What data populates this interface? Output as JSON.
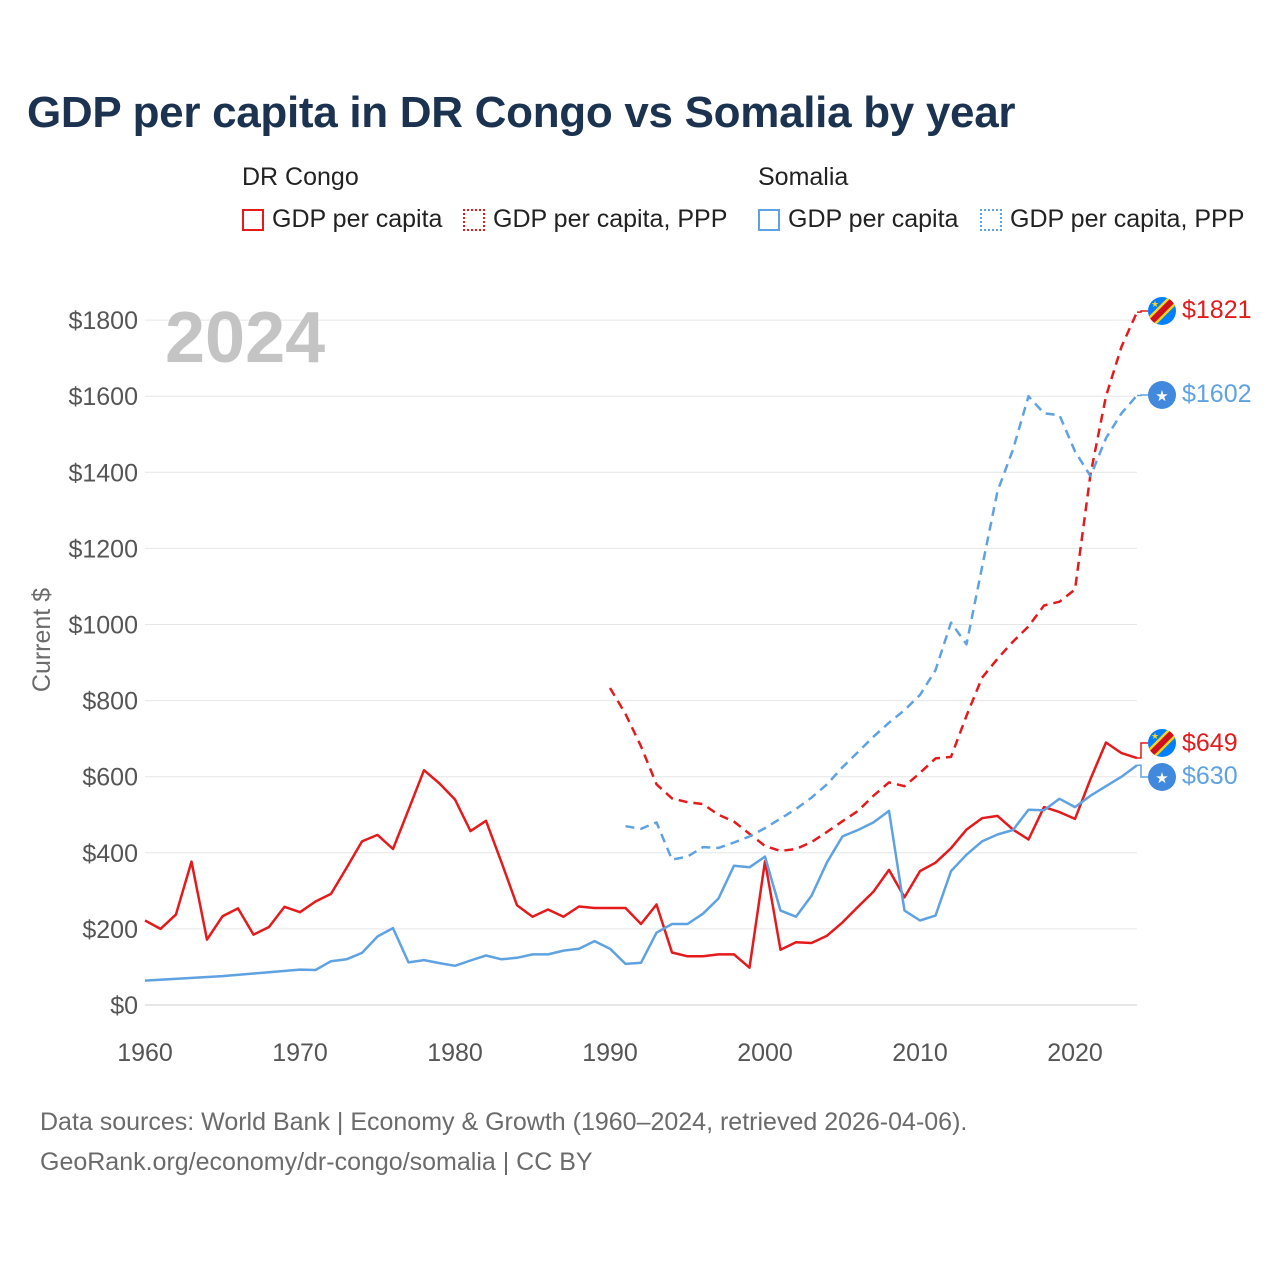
{
  "page": {
    "title": "GDP per capita in DR Congo vs Somalia by year",
    "year_watermark": "2024",
    "footer_line1": "Data sources: World Bank | Economy & Growth (1960–2024, retrieved 2026-04-06).",
    "footer_line2": "GeoRank.org/economy/dr-congo/somalia | CC BY"
  },
  "legend": {
    "groups": [
      {
        "name": "DR Congo",
        "items": [
          {
            "label": "GDP per capita",
            "style": "solid",
            "color": "#e41a1c"
          },
          {
            "label": "GDP per capita, PPP",
            "style": "dotted",
            "color": "#e41a1c"
          }
        ]
      },
      {
        "name": "Somalia",
        "items": [
          {
            "label": "GDP per capita",
            "style": "solid",
            "color": "#5fa2e2"
          },
          {
            "label": "GDP per capita, PPP",
            "style": "dotted",
            "color": "#5fa2e2"
          }
        ]
      }
    ]
  },
  "chart_data": {
    "type": "line",
    "title": "GDP per capita in DR Congo vs Somalia by year",
    "xlabel": "",
    "ylabel": "Current $",
    "xlim": [
      1960,
      2024
    ],
    "ylim": [
      0,
      1900
    ],
    "x_ticks": [
      1960,
      1970,
      1980,
      1990,
      2000,
      2010,
      2020
    ],
    "y_ticks": [
      0,
      200,
      400,
      600,
      800,
      1000,
      1200,
      1400,
      1600,
      1800
    ],
    "y_tick_labels": [
      "$0",
      "$200",
      "$400",
      "$600",
      "$800",
      "$1000",
      "$1200",
      "$1400",
      "$1600",
      "$1800"
    ],
    "grid": true,
    "series": [
      {
        "name": "DR Congo GDP per capita",
        "color": "#e41a1c",
        "dash": "solid",
        "end_label": "$649",
        "x": [
          1960,
          1961,
          1962,
          1963,
          1964,
          1965,
          1966,
          1967,
          1968,
          1969,
          1970,
          1971,
          1972,
          1973,
          1974,
          1975,
          1976,
          1977,
          1978,
          1979,
          1980,
          1981,
          1982,
          1983,
          1984,
          1985,
          1986,
          1987,
          1988,
          1989,
          1990,
          1991,
          1992,
          1993,
          1994,
          1995,
          1996,
          1997,
          1998,
          1999,
          2000,
          2001,
          2002,
          2003,
          2004,
          2005,
          2006,
          2007,
          2008,
          2009,
          2010,
          2011,
          2012,
          2013,
          2014,
          2015,
          2016,
          2017,
          2018,
          2019,
          2020,
          2021,
          2022,
          2023,
          2024
        ],
        "y": [
          222,
          200,
          238,
          377,
          172,
          233,
          254,
          185,
          205,
          258,
          244,
          272,
          292,
          360,
          430,
          447,
          410,
          513,
          617,
          582,
          540,
          457,
          484,
          375,
          262,
          232,
          251,
          232,
          259,
          255,
          255,
          255,
          213,
          264,
          138,
          128,
          128,
          133,
          133,
          98,
          378,
          145,
          165,
          163,
          182,
          217,
          258,
          298,
          355,
          283,
          352,
          374,
          412,
          461,
          491,
          497,
          461,
          435,
          520,
          507,
          489,
          594,
          690,
          662,
          649
        ]
      },
      {
        "name": "DR Congo GDP per capita, PPP",
        "color": "#e41a1c",
        "dash": "dashed",
        "end_label": "$1821",
        "x": [
          1990,
          1991,
          1992,
          1993,
          1994,
          1995,
          1996,
          1997,
          1998,
          1999,
          2000,
          2001,
          2002,
          2003,
          2004,
          2005,
          2006,
          2007,
          2008,
          2009,
          2010,
          2011,
          2012,
          2013,
          2014,
          2015,
          2016,
          2017,
          2018,
          2019,
          2020,
          2021,
          2022,
          2023,
          2024
        ],
        "y": [
          833,
          765,
          680,
          580,
          543,
          533,
          528,
          500,
          482,
          450,
          418,
          405,
          410,
          428,
          455,
          483,
          510,
          550,
          585,
          575,
          610,
          648,
          652,
          760,
          860,
          910,
          955,
          995,
          1050,
          1060,
          1092,
          1395,
          1600,
          1730,
          1821
        ]
      },
      {
        "name": "Somalia GDP per capita",
        "color": "#5fa2e2",
        "dash": "solid",
        "end_label": "$630",
        "x": [
          1960,
          1965,
          1970,
          1971,
          1972,
          1973,
          1974,
          1975,
          1976,
          1977,
          1978,
          1979,
          1980,
          1981,
          1982,
          1983,
          1984,
          1985,
          1986,
          1987,
          1988,
          1989,
          1990,
          1991,
          1992,
          1993,
          1994,
          1995,
          1996,
          1997,
          1998,
          1999,
          2000,
          2001,
          2002,
          2003,
          2004,
          2005,
          2006,
          2007,
          2008,
          2009,
          2010,
          2011,
          2012,
          2013,
          2014,
          2015,
          2016,
          2017,
          2018,
          2019,
          2020,
          2021,
          2022,
          2023,
          2024
        ],
        "y": [
          64,
          76,
          93,
          92,
          115,
          120,
          137,
          180,
          202,
          112,
          118,
          110,
          103,
          117,
          130,
          120,
          124,
          133,
          133,
          143,
          148,
          168,
          148,
          108,
          111,
          190,
          213,
          213,
          240,
          280,
          366,
          362,
          390,
          248,
          232,
          287,
          375,
          443,
          460,
          480,
          510,
          248,
          222,
          235,
          352,
          395,
          430,
          448,
          460,
          513,
          512,
          542,
          520,
          550,
          575,
          600,
          630
        ]
      },
      {
        "name": "Somalia GDP per capita, PPP",
        "color": "#5fa2e2",
        "dash": "dashed",
        "end_label": "$1602",
        "x": [
          1991,
          1992,
          1993,
          1994,
          1995,
          1996,
          1997,
          1998,
          1999,
          2000,
          2001,
          2002,
          2003,
          2004,
          2005,
          2006,
          2007,
          2008,
          2009,
          2010,
          2011,
          2012,
          2013,
          2014,
          2015,
          2016,
          2017,
          2018,
          2019,
          2020,
          2021,
          2022,
          2023,
          2024
        ],
        "y": [
          470,
          463,
          480,
          382,
          390,
          415,
          413,
          427,
          443,
          465,
          490,
          515,
          545,
          580,
          625,
          665,
          705,
          742,
          775,
          815,
          880,
          1005,
          948,
          1150,
          1350,
          1460,
          1600,
          1555,
          1550,
          1455,
          1390,
          1490,
          1555,
          1602
        ]
      }
    ]
  }
}
